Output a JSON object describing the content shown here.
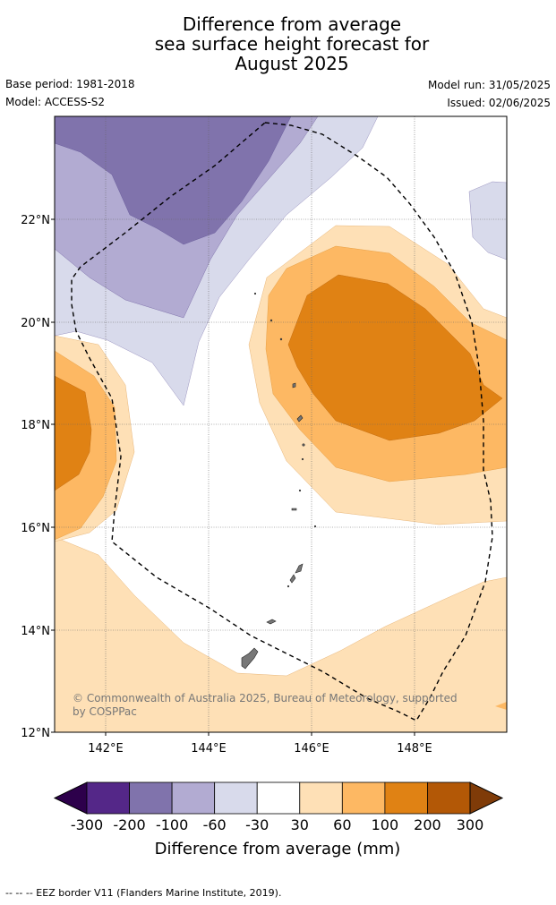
{
  "title": {
    "line1": "Difference from average",
    "line2": "sea surface height forecast for",
    "line3": "August 2025"
  },
  "meta": {
    "base_period": "Base period: 1981-2018",
    "model": "Model: ACCESS-S2",
    "model_run": "Model run: 31/05/2025",
    "issued": "Issued: 02/06/2025"
  },
  "map": {
    "lat_labels": [
      "22°N",
      "20°N",
      "18°N",
      "16°N",
      "14°N",
      "12°N"
    ],
    "lon_labels": [
      "142°E",
      "144°E",
      "146°E",
      "148°E"
    ],
    "copyright_line1": "© Commonwealth of Australia 2025, Bureau of Meteorology, supported",
    "copyright_line2": "by COSPPac"
  },
  "legend": {
    "title": "Difference from average (mm)",
    "ticks": [
      "-300",
      "-200",
      "-100",
      "-60",
      "-30",
      "30",
      "60",
      "100",
      "200",
      "300"
    ],
    "colors": [
      "#2d004b",
      "#542788",
      "#8073ac",
      "#b2abd2",
      "#d8daeb",
      "#ffffff",
      "#fee0b6",
      "#fdb863",
      "#e08214",
      "#b35806",
      "#7f3b08"
    ]
  },
  "footer": {
    "text": "--  --  -- EEZ border V11 (Flanders Marine Institute, 2019)."
  }
}
